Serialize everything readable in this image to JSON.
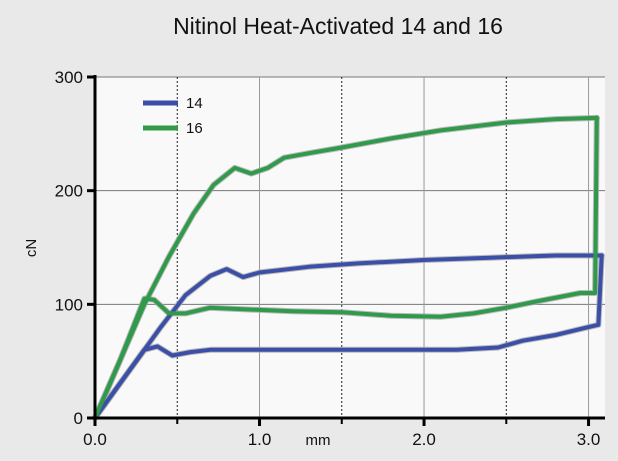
{
  "chart_data": {
    "type": "line",
    "title": "Nitinol Heat-Activated 14 and 16",
    "xlabel": "mm",
    "ylabel": "cN",
    "xlim": [
      0,
      3.1
    ],
    "ylim": [
      0,
      300
    ],
    "x_ticks": [
      0,
      1,
      2,
      3
    ],
    "x_tick_labels": [
      "0.0",
      "1.0",
      "2.0",
      "3.0"
    ],
    "y_ticks": [
      0,
      100,
      200,
      300
    ],
    "y_tick_labels": [
      "0",
      "100",
      "200",
      "300"
    ],
    "grid": true,
    "legend_position": "top-left",
    "series": [
      {
        "name": "14",
        "color": "#3b4fa8",
        "loading": [
          [
            0,
            0
          ],
          [
            0.2,
            40
          ],
          [
            0.4,
            80
          ],
          [
            0.55,
            108
          ],
          [
            0.7,
            125
          ],
          [
            0.8,
            131
          ],
          [
            0.9,
            124
          ],
          [
            1.0,
            128
          ],
          [
            1.3,
            133
          ],
          [
            1.6,
            136
          ],
          [
            2.0,
            139
          ],
          [
            2.4,
            141
          ],
          [
            2.8,
            143
          ],
          [
            3.08,
            143
          ]
        ],
        "unloading": [
          [
            3.08,
            143
          ],
          [
            3.06,
            82
          ],
          [
            3.0,
            80
          ],
          [
            2.8,
            73
          ],
          [
            2.6,
            68
          ],
          [
            2.45,
            62
          ],
          [
            2.2,
            60
          ],
          [
            1.6,
            60
          ],
          [
            1.2,
            60
          ],
          [
            0.7,
            60
          ],
          [
            0.58,
            58
          ],
          [
            0.47,
            55
          ],
          [
            0.38,
            63
          ],
          [
            0.3,
            60
          ],
          [
            0.15,
            30
          ],
          [
            0,
            0
          ]
        ]
      },
      {
        "name": "16",
        "color": "#2e9a4a",
        "loading": [
          [
            0,
            0
          ],
          [
            0.15,
            50
          ],
          [
            0.3,
            100
          ],
          [
            0.45,
            142
          ],
          [
            0.6,
            180
          ],
          [
            0.72,
            205
          ],
          [
            0.85,
            220
          ],
          [
            0.95,
            215
          ],
          [
            1.05,
            220
          ],
          [
            1.15,
            229
          ],
          [
            1.3,
            233
          ],
          [
            1.5,
            238
          ],
          [
            1.8,
            246
          ],
          [
            2.1,
            253
          ],
          [
            2.5,
            260
          ],
          [
            2.8,
            263
          ],
          [
            3.05,
            264
          ]
        ],
        "unloading": [
          [
            3.05,
            264
          ],
          [
            3.04,
            110
          ],
          [
            2.95,
            110
          ],
          [
            2.7,
            103
          ],
          [
            2.5,
            97
          ],
          [
            2.3,
            92
          ],
          [
            2.1,
            89
          ],
          [
            1.8,
            90
          ],
          [
            1.5,
            93
          ],
          [
            1.2,
            94
          ],
          [
            0.85,
            96
          ],
          [
            0.7,
            97
          ],
          [
            0.55,
            92
          ],
          [
            0.45,
            92
          ],
          [
            0.36,
            104
          ],
          [
            0.3,
            105
          ],
          [
            0.15,
            50
          ],
          [
            0,
            0
          ]
        ]
      }
    ]
  }
}
